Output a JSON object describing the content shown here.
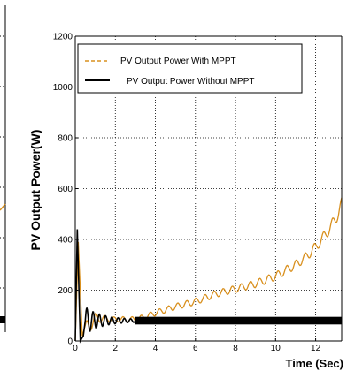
{
  "chart_data": {
    "type": "line",
    "xlabel": "Time (Sec)",
    "ylabel": "PV Output Power(W)",
    "xlim": [
      0,
      13.3
    ],
    "ylim": [
      0,
      1200
    ],
    "x_ticks": [
      0,
      2,
      4,
      6,
      8,
      10,
      12
    ],
    "y_ticks": [
      0,
      200,
      400,
      600,
      800,
      1000,
      1200
    ],
    "grid": true,
    "grid_style": "dotted",
    "legend_position": "top-left",
    "series": [
      {
        "name": "PV Output Power  With MPPT",
        "color": "#d9901e",
        "style": "dashed",
        "x": [
          0,
          0.2,
          0.5,
          1,
          2,
          3,
          3.5,
          4,
          5,
          6,
          7,
          8,
          9,
          10,
          11,
          11.5,
          12,
          12.5,
          13,
          13.3
        ],
        "y": [
          0,
          390,
          40,
          90,
          85,
          85,
          95,
          110,
          135,
          155,
          185,
          205,
          225,
          255,
          300,
          330,
          370,
          420,
          480,
          540
        ]
      },
      {
        "name": "PV Output Power   Without MPPT",
        "color": "#000000",
        "style": "solid",
        "x": [
          0,
          0.15,
          0.3,
          0.5,
          1,
          1.5,
          2,
          3,
          4,
          5,
          6,
          7,
          8,
          9,
          10,
          11,
          12,
          13.3
        ],
        "y": [
          0,
          440,
          0,
          110,
          60,
          95,
          75,
          80,
          80,
          80,
          80,
          80,
          80,
          80,
          80,
          80,
          80,
          80
        ]
      }
    ]
  },
  "left_panel_fragment": {
    "color": "#000000"
  }
}
